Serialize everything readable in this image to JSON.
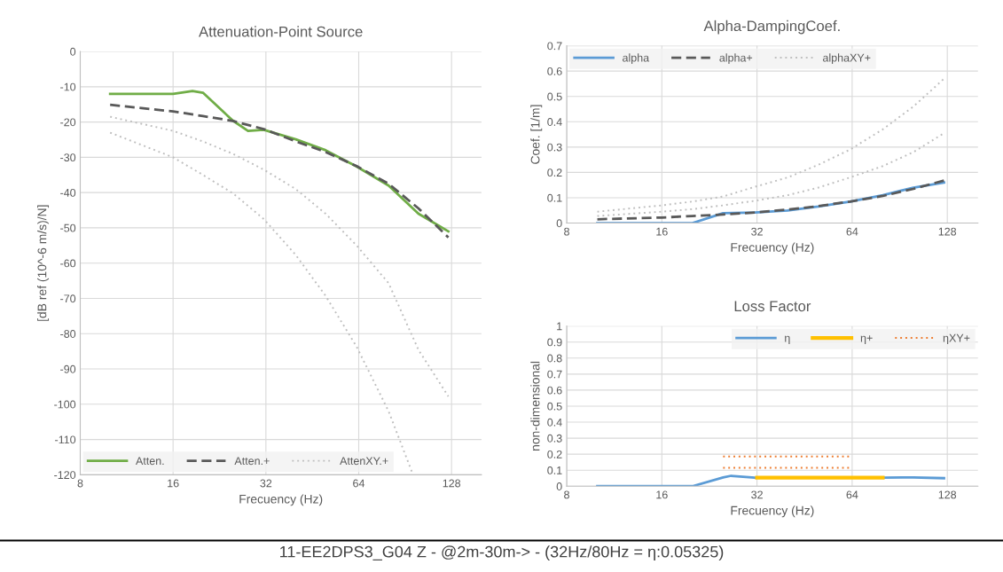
{
  "chart_data": [
    {
      "type": "line",
      "title": "Attenuation-Point Source",
      "xlabel": "Frecuency (Hz)",
      "ylabel": "[dB ref (10^-6 m/s)/N]",
      "log": "x",
      "xlim": [
        8,
        160
      ],
      "xticks": [
        8,
        16,
        32,
        64,
        128
      ],
      "ylim": [
        -120,
        0
      ],
      "yticks": [
        0,
        -10,
        -20,
        -30,
        -40,
        -50,
        -60,
        -70,
        -80,
        -90,
        -100,
        -110,
        -120
      ],
      "grid": true,
      "legend": "bottom left",
      "series": [
        {
          "name": "Atten.",
          "color": "#70ad47",
          "line_style": "solid",
          "x": [
            10,
            12.5,
            16,
            18.5,
            20,
            25,
            28,
            31.5,
            40,
            50,
            63,
            80,
            100,
            125
          ],
          "values": [
            -12,
            -12,
            -12,
            -11.2,
            -11.7,
            -19.6,
            -22.5,
            -22.2,
            -24.9,
            -28,
            -32.6,
            -38,
            -46,
            -51
          ]
        },
        {
          "name": "Atten.+",
          "color": "#595959",
          "line_style": "dashed",
          "x": [
            10,
            16,
            20,
            25,
            31.5,
            40,
            50,
            63,
            80,
            100,
            125
          ],
          "values": [
            -15.1,
            -17,
            -18.3,
            -19.7,
            -22,
            -25.5,
            -28.5,
            -32.5,
            -37.5,
            -44.5,
            -52.7
          ]
        },
        {
          "name": "AttenXY.+",
          "color": "#bfbfbf",
          "line_style": "dotted",
          "x": [
            10,
            16,
            20,
            25,
            31.5,
            40,
            50,
            63,
            80,
            100,
            125
          ],
          "values": [
            -18.5,
            -22.5,
            -25.5,
            -29,
            -33.5,
            -39,
            -46,
            -55,
            -65.7,
            -84.6,
            -97.8
          ]
        },
        {
          "color": "#bfbfbf",
          "line_style": "dotted",
          "x": [
            10,
            16,
            20,
            25,
            31.5,
            40,
            50,
            63,
            80,
            96
          ],
          "values": [
            -23,
            -30,
            -35,
            -40.2,
            -47.5,
            -57.7,
            -69.3,
            -83.7,
            -102,
            -120
          ]
        }
      ]
    },
    {
      "type": "line",
      "title": "Alpha-DampingCoef.",
      "xlabel": "Frecuency (Hz)",
      "ylabel": "Coef. [1/m]",
      "log": "x",
      "xlim": [
        8,
        160
      ],
      "xticks": [
        8,
        16,
        32,
        64,
        128
      ],
      "ylim": [
        0,
        0.7
      ],
      "yticks": [
        0,
        0.1,
        0.2,
        0.3,
        0.4,
        0.5,
        0.6,
        0.7
      ],
      "grid": true,
      "legend": "top left",
      "series": [
        {
          "name": "alpha",
          "color": "#5b9bd5",
          "line_style": "solid",
          "x": [
            10,
            12.5,
            16,
            20,
            25,
            31.5,
            40,
            50,
            63,
            80,
            100,
            125
          ],
          "values": [
            0,
            0,
            0,
            0,
            0.039,
            0.042,
            0.05,
            0.065,
            0.085,
            0.11,
            0.14,
            0.16
          ]
        },
        {
          "name": "alpha+",
          "color": "#595959",
          "line_style": "dashed",
          "x": [
            10,
            16,
            20,
            25,
            31.5,
            40,
            50,
            63,
            80,
            100,
            125
          ],
          "values": [
            0.015,
            0.022,
            0.028,
            0.034,
            0.042,
            0.053,
            0.067,
            0.085,
            0.107,
            0.135,
            0.168
          ]
        },
        {
          "name": "alphaXY+",
          "color": "#bfbfbf",
          "line_style": "dotted",
          "x": [
            10,
            16,
            20,
            25,
            31.5,
            40,
            50,
            63,
            80,
            100,
            125
          ],
          "values": [
            0.045,
            0.07,
            0.085,
            0.105,
            0.143,
            0.18,
            0.23,
            0.29,
            0.37,
            0.46,
            0.57
          ]
        },
        {
          "color": "#bfbfbf",
          "line_style": "dotted",
          "x": [
            10,
            16,
            20,
            25,
            31.5,
            40,
            50,
            63,
            80,
            100,
            125
          ],
          "values": [
            0.028,
            0.045,
            0.055,
            0.07,
            0.088,
            0.11,
            0.14,
            0.18,
            0.225,
            0.28,
            0.355
          ]
        }
      ]
    },
    {
      "type": "line",
      "title": "Loss Factor",
      "xlabel": "Frecuency (Hz)",
      "ylabel": "non-dimensional",
      "log": "x",
      "xlim": [
        8,
        160
      ],
      "xticks": [
        8,
        16,
        32,
        64,
        128
      ],
      "ylim": [
        0,
        1
      ],
      "yticks": [
        0,
        0.1,
        0.2,
        0.3,
        0.4,
        0.5,
        0.6,
        0.7,
        0.8,
        0.9,
        1
      ],
      "grid": true,
      "legend": "top right",
      "annotations": [
        "11-EE2DPS3_G04 Z - @2m-30m-> - (32Hz/80Hz = η:0.05325)"
      ],
      "series": [
        {
          "name": "η",
          "color": "#5b9bd5",
          "line_style": "solid",
          "x": [
            10,
            12.5,
            16,
            20,
            25,
            26.5,
            31.5,
            40,
            50,
            63,
            80,
            100,
            125
          ],
          "values": [
            0,
            0,
            0,
            0,
            0.055,
            0.065,
            0.053,
            null,
            null,
            null,
            0.053,
            0.055,
            0.05
          ]
        },
        {
          "name": "η+",
          "color": "#ffc000",
          "line_style": "solid",
          "x": [
            32,
            80
          ],
          "values": [
            0.053,
            0.053
          ]
        },
        {
          "name": "ηXY+",
          "color": "#ed7d31",
          "line_style": "dotted",
          "x": [
            25,
            63
          ],
          "values": [
            0.185,
            0.185
          ]
        },
        {
          "color": "#ed7d31",
          "line_style": "dotted",
          "x": [
            25,
            63
          ],
          "values": [
            0.115,
            0.115
          ]
        }
      ]
    }
  ]
}
